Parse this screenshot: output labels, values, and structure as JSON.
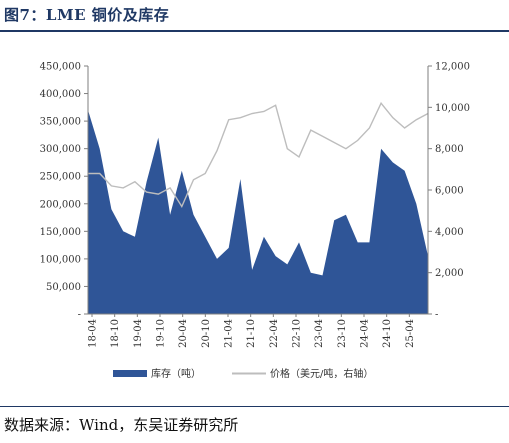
{
  "header": {
    "title": "图7：LME 铜价及库存"
  },
  "footer": {
    "source": "数据来源：Wind，东吴证券研究所"
  },
  "legend": {
    "inventory_label": "库存（吨）",
    "price_label": "价格（美元/吨，右轴）"
  },
  "colors": {
    "inventory": "#2f5597",
    "price": "#bdbdbd",
    "axis": "#7f7f7f",
    "title": "#1f3864"
  },
  "chart_data": {
    "type": "area",
    "title": "",
    "x": [
      "2018-04",
      "2018-07",
      "2018-10",
      "2019-01",
      "2019-04",
      "2019-07",
      "2019-10",
      "2020-01",
      "2020-04",
      "2020-07",
      "2020-10",
      "2021-01",
      "2021-04",
      "2021-07",
      "2021-10",
      "2022-01",
      "2022-04",
      "2022-07",
      "2022-10",
      "2023-01",
      "2023-04",
      "2023-07",
      "2023-10",
      "2024-01",
      "2024-04",
      "2024-07",
      "2024-10",
      "2025-01",
      "2025-04",
      "2025-06"
    ],
    "x_tick_labels": [
      "18-04",
      "18-10",
      "19-04",
      "19-10",
      "20-04",
      "20-10",
      "21-04",
      "21-10",
      "22-04",
      "22-10",
      "23-04",
      "23-10",
      "24-04",
      "24-10",
      "25-04"
    ],
    "y_left_ticks": [
      "-",
      "50,000",
      "100,000",
      "150,000",
      "200,000",
      "250,000",
      "300,000",
      "350,000",
      "400,000",
      "450,000"
    ],
    "y_right_ticks": [
      "-",
      "2,000",
      "4,000",
      "6,000",
      "8,000",
      "10,000",
      "12,000"
    ],
    "y_left_range": [
      0,
      450000
    ],
    "y_right_range": [
      0,
      12000
    ],
    "grid": false,
    "legend_position": "bottom",
    "series": [
      {
        "name": "库存（吨）",
        "type": "area",
        "axis": "left",
        "values": [
          370000,
          300000,
          190000,
          150000,
          140000,
          240000,
          320000,
          180000,
          260000,
          180000,
          140000,
          100000,
          120000,
          245000,
          80000,
          140000,
          105000,
          90000,
          130000,
          75000,
          70000,
          170000,
          180000,
          130000,
          130000,
          300000,
          275000,
          260000,
          200000,
          105000
        ]
      },
      {
        "name": "价格（美元/吨，右轴）",
        "type": "line",
        "axis": "right",
        "values": [
          6800,
          6800,
          6200,
          6100,
          6400,
          5900,
          5800,
          6100,
          5200,
          6500,
          6800,
          7900,
          9400,
          9500,
          9700,
          9800,
          10100,
          8000,
          7600,
          8900,
          8600,
          8300,
          8000,
          8400,
          9000,
          10200,
          9500,
          9000,
          9400,
          9700
        ]
      }
    ]
  }
}
